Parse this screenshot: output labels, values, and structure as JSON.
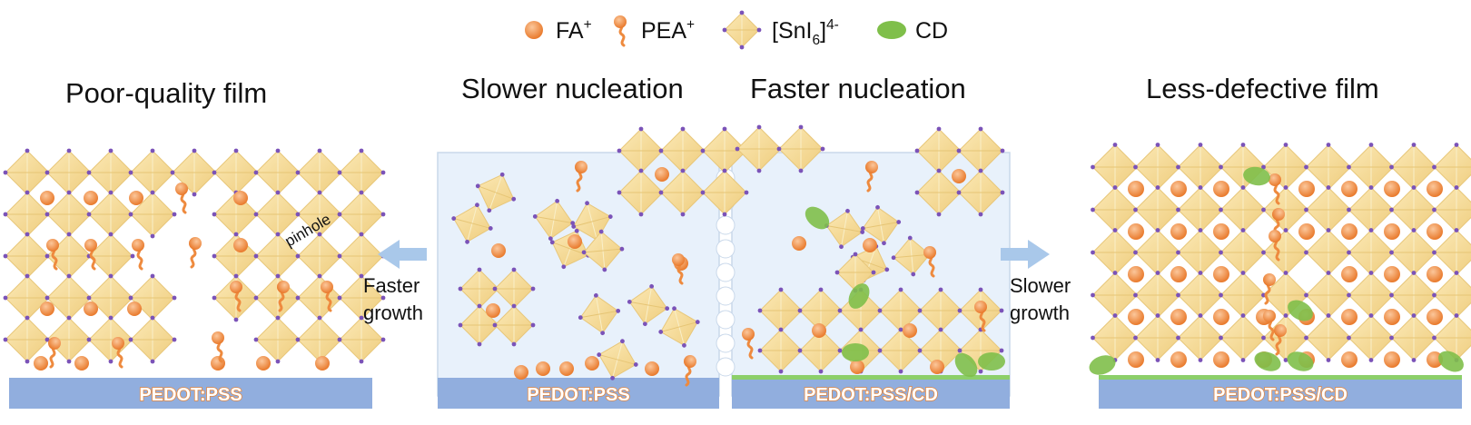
{
  "legend": {
    "fa": "FA",
    "fa_sup": "+",
    "pea": "PEA",
    "pea_sup": "+",
    "sni_prefix": "[SnI",
    "sni_sub": "6",
    "sni_suffix": "]",
    "sni_sup": "4-",
    "cd": "CD"
  },
  "panels": {
    "poor": {
      "title": "Poor-quality film",
      "substrate": "PEDOT:PSS",
      "annotation": "pinhole"
    },
    "slow": {
      "title": "Slower nucleation",
      "substrate": "PEDOT:PSS"
    },
    "fast": {
      "title": "Faster nucleation",
      "substrate": "PEDOT:PSS/CD"
    },
    "less": {
      "title": "Less-defective film",
      "substrate": "PEDOT:PSS/CD"
    }
  },
  "arrows": {
    "left": {
      "line1": "Faster",
      "line2": "growth"
    },
    "right": {
      "line1": "Slower",
      "line2": "growth"
    }
  },
  "colors": {
    "octahedron_fill": "#f6dc9a",
    "octahedron_stroke": "#e8c77a",
    "iodide": "#7b53b8",
    "fa": "#ee8a3e",
    "cd": "#7fbf4a",
    "substrate": "#91aede",
    "solution": "#e6f0fa",
    "arrow": "#a9c8ea"
  }
}
